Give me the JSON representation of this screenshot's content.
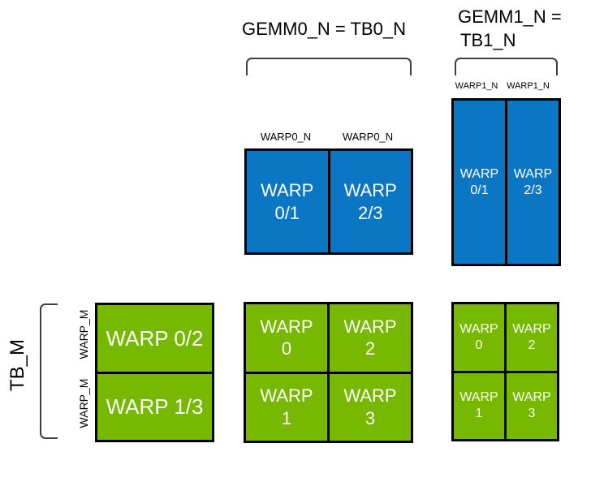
{
  "titles": {
    "gemm0_n": "GEMM0_N = TB0_N",
    "gemm1_n_line1": "GEMM1_N =",
    "gemm1_n_line2": "TB1_N",
    "tb_m": "TB_M"
  },
  "axis_labels": {
    "gemm0_warp_n_left": "WARP0_N",
    "gemm0_warp_n_right": "WARP0_N",
    "gemm1_warp_n_left": "WARP1_N",
    "gemm1_warp_n_right": "WARP1_N",
    "warp_m_top": "WARP_M",
    "warp_m_bottom": "WARP_M"
  },
  "tiles": {
    "gemm0_b": {
      "cells": [
        {
          "line1": "WARP",
          "line2": "0/1"
        },
        {
          "line1": "WARP",
          "line2": "2/3"
        }
      ]
    },
    "gemm1_b": {
      "cells": [
        {
          "line1": "WARP",
          "line2": "0/1"
        },
        {
          "line1": "WARP",
          "line2": "2/3"
        }
      ]
    },
    "a": {
      "rows": [
        {
          "label": "WARP 0/2"
        },
        {
          "label": "WARP 1/3"
        }
      ]
    },
    "gemm0_c": {
      "cells": [
        {
          "line1": "WARP",
          "line2": "0"
        },
        {
          "line1": "WARP",
          "line2": "2"
        },
        {
          "line1": "WARP",
          "line2": "1"
        },
        {
          "line1": "WARP",
          "line2": "3"
        }
      ]
    },
    "gemm1_c": {
      "cells": [
        {
          "line1": "WARP",
          "line2": "0"
        },
        {
          "line1": "WARP",
          "line2": "2"
        },
        {
          "line1": "WARP",
          "line2": "1"
        },
        {
          "line1": "WARP",
          "line2": "3"
        }
      ]
    }
  },
  "colors": {
    "blue": "#0B76C4",
    "green": "#76B900",
    "border": "#000000",
    "bracket": "#3F3F3F",
    "cell_text": "#FFFFFF",
    "label_text": "#000000"
  }
}
